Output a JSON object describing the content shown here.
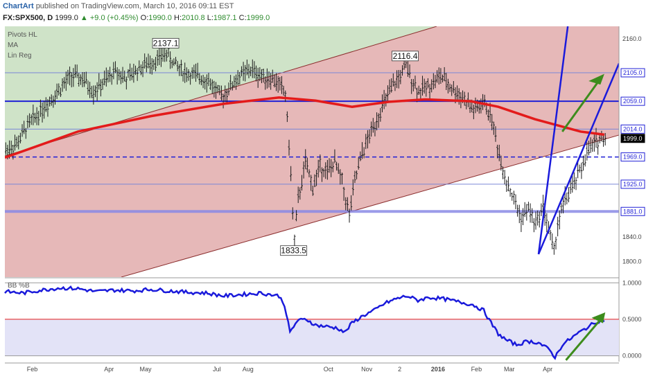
{
  "header": {
    "brand": "ChartArt",
    "published": "published on TradingView.com, March 10, 2016 09:11 EST",
    "symbol": "FX:SPX500, D",
    "last": "1999.0",
    "change": "+9.0 (+0.45%)",
    "o_label": "O:",
    "o_val": "1990.0",
    "h_label": "H:",
    "h_val": "2010.8",
    "l_label": "L:",
    "l_val": "1987.1",
    "c_label": "C:",
    "c_val": "1999.0"
  },
  "indicators": [
    "Pivots HL",
    "MA",
    "Lin Reg"
  ],
  "lower_indicator_label": "BB %B",
  "colors": {
    "price": "#1a1a1a",
    "ma": "#e31b1b",
    "hline": "#1f1fd6",
    "trend": "#1a1adb",
    "arrow": "#3d8c1c",
    "band_upper": "#cfe3c8",
    "band_mid": "#e6b8b8",
    "bbpb_fill": "#e3e3f7",
    "bbpb_line": "#1a1adb"
  },
  "chart_data": [
    {
      "type": "candlestick",
      "title": "",
      "x_ticks": [
        "Feb",
        "Apr",
        "May",
        "Jul",
        "Aug",
        "Oct",
        "Nov",
        "2",
        "2016",
        "Feb",
        "Mar",
        "Apr"
      ],
      "y_ticks": [
        1800.0,
        1840.0,
        1880.0,
        1925.0,
        1969.0,
        2014.0,
        2059.0,
        2105.0,
        2160.0
      ],
      "y_tick_labels": [
        "1800.0",
        "1840.0",
        "1880.0",
        "1925.0",
        "1969.0",
        "2014.0",
        "2059.0",
        "2105.0",
        "2160.0"
      ],
      "ylim": [
        1775,
        2180
      ],
      "boxed_levels": [
        "2105.0",
        "2059.0",
        "2014.0",
        "1999.0",
        "1969.0",
        "1925.0",
        "1881.0"
      ],
      "pivots": [
        {
          "label": "2137.1",
          "value": 2137.1,
          "type": "high"
        },
        {
          "label": "2116.4",
          "value": 2116.4,
          "type": "high"
        },
        {
          "label": "1833.5",
          "value": 1833.5,
          "type": "low"
        }
      ],
      "horizontal_lines": [
        2105.0,
        2059.0,
        2014.0,
        1969.0,
        1925.0,
        1881.0
      ],
      "price_path": [
        [
          0,
          1980
        ],
        [
          6,
          1990
        ],
        [
          12,
          2020
        ],
        [
          18,
          2040
        ],
        [
          24,
          2060
        ],
        [
          30,
          2080
        ],
        [
          36,
          2100
        ],
        [
          42,
          2095
        ],
        [
          48,
          2075
        ],
        [
          54,
          2090
        ],
        [
          60,
          2108
        ],
        [
          66,
          2095
        ],
        [
          72,
          2110
        ],
        [
          78,
          2120
        ],
        [
          84,
          2128
        ],
        [
          88,
          2137.1
        ],
        [
          92,
          2120
        ],
        [
          98,
          2105
        ],
        [
          104,
          2100
        ],
        [
          110,
          2095
        ],
        [
          114,
          2080
        ],
        [
          118,
          2065
        ],
        [
          122,
          2080
        ],
        [
          128,
          2100
        ],
        [
          134,
          2110
        ],
        [
          140,
          2100
        ],
        [
          146,
          2095
        ],
        [
          150,
          2085
        ],
        [
          153,
          2070
        ],
        [
          155,
          1990
        ],
        [
          157,
          1880
        ],
        [
          158,
          1833.5
        ],
        [
          160,
          1900
        ],
        [
          164,
          1960
        ],
        [
          168,
          1920
        ],
        [
          172,
          1955
        ],
        [
          176,
          1945
        ],
        [
          180,
          1960
        ],
        [
          184,
          1930
        ],
        [
          186,
          1900
        ],
        [
          188,
          1875
        ],
        [
          191,
          1930
        ],
        [
          195,
          1975
        ],
        [
          200,
          2010
        ],
        [
          206,
          2050
        ],
        [
          212,
          2085
        ],
        [
          216,
          2100
        ],
        [
          219,
          2116.4
        ],
        [
          222,
          2095
        ],
        [
          226,
          2075
        ],
        [
          232,
          2085
        ],
        [
          238,
          2100
        ],
        [
          244,
          2080
        ],
        [
          250,
          2065
        ],
        [
          256,
          2045
        ],
        [
          262,
          2055
        ],
        [
          266,
          2030
        ],
        [
          268,
          2000
        ],
        [
          271,
          1960
        ],
        [
          274,
          1930
        ],
        [
          278,
          1900
        ],
        [
          282,
          1870
        ],
        [
          286,
          1885
        ],
        [
          290,
          1860
        ],
        [
          294,
          1890
        ],
        [
          298,
          1840
        ],
        [
          300,
          1815
        ],
        [
          302,
          1860
        ],
        [
          306,
          1900
        ],
        [
          310,
          1920
        ],
        [
          314,
          1945
        ],
        [
          318,
          1975
        ],
        [
          322,
          1990
        ],
        [
          326,
          2000
        ],
        [
          328,
          1999
        ]
      ],
      "ma_path": [
        [
          0,
          1968
        ],
        [
          40,
          2010
        ],
        [
          80,
          2035
        ],
        [
          120,
          2055
        ],
        [
          150,
          2065
        ],
        [
          170,
          2060
        ],
        [
          190,
          2050
        ],
        [
          210,
          2058
        ],
        [
          230,
          2062
        ],
        [
          255,
          2059
        ],
        [
          270,
          2050
        ],
        [
          290,
          2030
        ],
        [
          315,
          2010
        ],
        [
          328,
          2005
        ]
      ]
    },
    {
      "type": "line",
      "title": "",
      "series": [
        {
          "name": "BB %B"
        }
      ],
      "y_ticks": [
        1.0,
        0.5,
        0.0
      ],
      "y_tick_labels": [
        "1.0000",
        "0.5000",
        "0.0000"
      ],
      "ylim": [
        -0.08,
        1.05
      ],
      "reference_line": 0.5,
      "path": [
        [
          0,
          0.88
        ],
        [
          10,
          0.86
        ],
        [
          20,
          0.9
        ],
        [
          30,
          0.93
        ],
        [
          40,
          0.92
        ],
        [
          50,
          0.88
        ],
        [
          60,
          0.9
        ],
        [
          70,
          0.89
        ],
        [
          80,
          0.91
        ],
        [
          90,
          0.89
        ],
        [
          100,
          0.87
        ],
        [
          110,
          0.86
        ],
        [
          120,
          0.82
        ],
        [
          130,
          0.84
        ],
        [
          140,
          0.86
        ],
        [
          150,
          0.82
        ],
        [
          153,
          0.7
        ],
        [
          156,
          0.32
        ],
        [
          160,
          0.48
        ],
        [
          165,
          0.5
        ],
        [
          170,
          0.42
        ],
        [
          176,
          0.4
        ],
        [
          182,
          0.38
        ],
        [
          186,
          0.32
        ],
        [
          190,
          0.45
        ],
        [
          196,
          0.55
        ],
        [
          202,
          0.62
        ],
        [
          208,
          0.72
        ],
        [
          214,
          0.78
        ],
        [
          220,
          0.82
        ],
        [
          226,
          0.76
        ],
        [
          232,
          0.8
        ],
        [
          240,
          0.78
        ],
        [
          248,
          0.74
        ],
        [
          256,
          0.7
        ],
        [
          262,
          0.62
        ],
        [
          266,
          0.45
        ],
        [
          270,
          0.3
        ],
        [
          274,
          0.22
        ],
        [
          280,
          0.15
        ],
        [
          286,
          0.2
        ],
        [
          292,
          0.18
        ],
        [
          298,
          0.08
        ],
        [
          301,
          -0.02
        ],
        [
          305,
          0.15
        ],
        [
          312,
          0.28
        ],
        [
          318,
          0.38
        ],
        [
          324,
          0.47
        ],
        [
          328,
          0.49
        ]
      ],
      "x_ticks": [
        "Feb",
        "Apr",
        "May",
        "Jul",
        "Aug",
        "Oct",
        "Nov",
        "2",
        "2016",
        "Feb",
        "Mar",
        "Apr"
      ]
    }
  ]
}
